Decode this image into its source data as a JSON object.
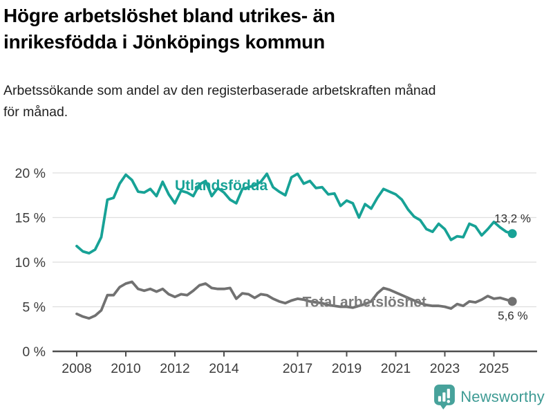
{
  "header": {
    "title_lines": [
      "Högre arbetslöshet bland utrikes- än",
      "inrikesfödda i Jönköpings kommun"
    ],
    "subtitle_lines": [
      "Arbetssökande som andel av den registerbaserade arbetskraften månad",
      "för månad."
    ]
  },
  "chart_data": {
    "type": "line",
    "title": "Högre arbetslöshet bland utrikes- än inrikesfödda i Jönköpings kommun",
    "subtitle": "Arbetssökande som andel av den registerbaserade arbetskraften månad för månad.",
    "unit": "%",
    "grid": "horizontal",
    "x_axis": {
      "ticks": [
        2008,
        2010,
        2012,
        2014,
        2017,
        2019,
        2021,
        2023,
        2025
      ],
      "range": [
        2008.0,
        2025.75
      ]
    },
    "y_axis": {
      "tick_values": [
        0,
        5,
        10,
        15,
        20
      ],
      "tick_labels": [
        "0 %",
        "5 %",
        "10 %",
        "15 %",
        "20 %"
      ],
      "ylim": [
        0,
        21
      ]
    },
    "sampling": "monthly data shown; values estimated at quarterly resolution",
    "x_start": 2008.0,
    "x_step": 0.25,
    "series": [
      {
        "name": "Utlandsfödda",
        "color": "#17a296",
        "label_color": "#17a296",
        "end_label": "13,2 %",
        "end_value": 13.2,
        "label_at": {
          "x": 2012.0,
          "y": 18.05
        },
        "values": [
          11.8,
          11.2,
          11.0,
          11.4,
          12.8,
          17.0,
          17.2,
          18.8,
          19.8,
          19.2,
          17.9,
          17.8,
          18.2,
          17.4,
          19.0,
          17.6,
          16.6,
          18.0,
          17.8,
          17.4,
          18.7,
          19.1,
          17.4,
          18.3,
          17.8,
          17.0,
          16.6,
          18.2,
          18.4,
          18.6,
          19.0,
          19.9,
          18.4,
          17.9,
          17.5,
          19.5,
          19.9,
          18.8,
          19.1,
          18.3,
          18.4,
          17.6,
          17.7,
          16.3,
          16.9,
          16.6,
          15.0,
          16.5,
          16.0,
          17.2,
          18.2,
          17.9,
          17.6,
          17.0,
          15.9,
          15.1,
          14.7,
          13.7,
          13.4,
          14.3,
          13.7,
          12.5,
          12.9,
          12.8,
          14.3,
          14.0,
          13.0,
          13.7,
          14.5,
          13.9,
          13.4,
          13.2
        ]
      },
      {
        "name": "Total arbetslöshet",
        "color": "#717171",
        "label_color": "#7a7a7a",
        "end_label": "5,6 %",
        "end_value": 5.6,
        "label_at": {
          "x": 2017.2,
          "y": 5.0
        },
        "values": [
          4.2,
          3.9,
          3.7,
          4.0,
          4.6,
          6.3,
          6.3,
          7.2,
          7.6,
          7.8,
          7.0,
          6.8,
          7.0,
          6.7,
          7.0,
          6.4,
          6.1,
          6.4,
          6.3,
          6.8,
          7.4,
          7.6,
          7.1,
          7.0,
          7.0,
          7.1,
          5.9,
          6.5,
          6.4,
          6.0,
          6.4,
          6.3,
          5.9,
          5.6,
          5.4,
          5.7,
          5.9,
          5.8,
          5.6,
          5.5,
          5.4,
          5.2,
          5.1,
          5.0,
          5.0,
          4.9,
          5.1,
          5.3,
          5.6,
          6.5,
          7.1,
          6.9,
          6.6,
          6.3,
          6.0,
          5.7,
          5.4,
          5.2,
          5.1,
          5.1,
          5.0,
          4.8,
          5.3,
          5.1,
          5.6,
          5.5,
          5.8,
          6.2,
          5.9,
          6.0,
          5.8,
          5.6
        ]
      }
    ]
  },
  "colors": {
    "accent_teal": "#17a296",
    "line_gray": "#717171",
    "grid": "#dedede",
    "axis": "#4d4d4d",
    "tick_text": "#3c3c3c",
    "annotation_text": "#2e2e2e",
    "brand_teal": "#3e9b94"
  },
  "footer": {
    "brand": "Newsworthy",
    "logo_icon": "speech-bubble-bar-chart-icon"
  }
}
